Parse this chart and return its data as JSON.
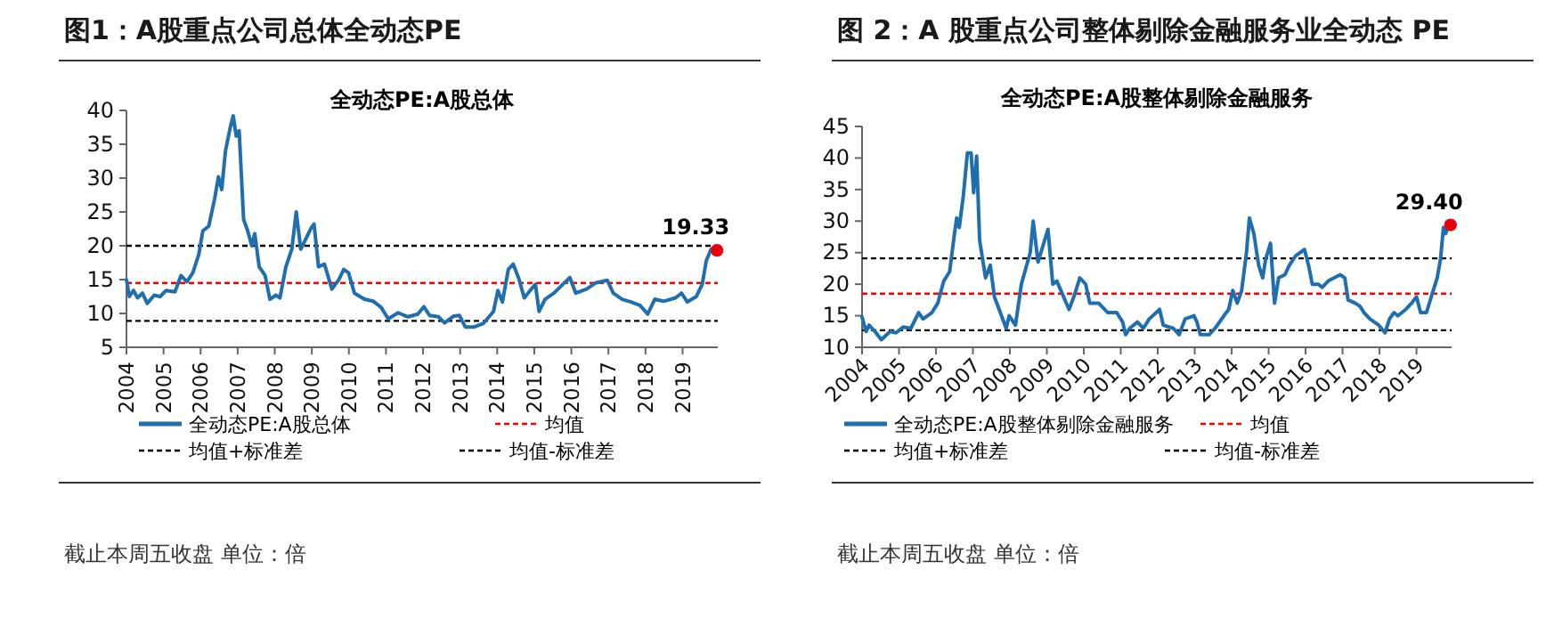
{
  "chart_data": [
    {
      "type": "line",
      "title": "图1：A股重点公司总体全动态PE",
      "subtitle": "全动态PE:A股总体",
      "xlim": [
        2004,
        2019.95
      ],
      "xticks": [
        2004,
        2005,
        2006,
        2007,
        2008,
        2009,
        2010,
        2011,
        2012,
        2013,
        2014,
        2015,
        2016,
        2017,
        2018,
        2019
      ],
      "ylim": [
        5,
        40
      ],
      "yticks": [
        5,
        10,
        15,
        20,
        25,
        30,
        35,
        40
      ],
      "grid": false,
      "legend": "bottom",
      "line_style": "solid",
      "series": [
        {
          "name": "全动态PE:A股总体",
          "color": "#1f6fb0",
          "x": [
            2004.0,
            2004.08,
            2004.19,
            2004.3,
            2004.43,
            2004.56,
            2004.75,
            2004.91,
            2005.07,
            2005.31,
            2005.47,
            2005.63,
            2005.79,
            2005.95,
            2006.06,
            2006.22,
            2006.38,
            2006.48,
            2006.57,
            2006.67,
            2006.8,
            2006.88,
            2006.96,
            2007.04,
            2007.16,
            2007.27,
            2007.38,
            2007.46,
            2007.58,
            2007.74,
            2007.87,
            2008.03,
            2008.14,
            2008.3,
            2008.46,
            2008.58,
            2008.7,
            2008.82,
            2008.98,
            2009.06,
            2009.18,
            2009.34,
            2009.54,
            2009.73,
            2009.86,
            2009.99,
            2010.15,
            2010.42,
            2010.66,
            2010.87,
            2011.06,
            2011.33,
            2011.59,
            2011.86,
            2012.02,
            2012.18,
            2012.42,
            2012.58,
            2012.82,
            2012.98,
            2013.14,
            2013.38,
            2013.62,
            2013.78,
            2013.9,
            2014.02,
            2014.14,
            2014.3,
            2014.43,
            2014.58,
            2014.73,
            2014.89,
            2015.03,
            2015.13,
            2015.29,
            2015.53,
            2015.77,
            2015.96,
            2016.12,
            2016.41,
            2016.65,
            2016.97,
            2017.13,
            2017.37,
            2017.61,
            2017.85,
            2018.06,
            2018.25,
            2018.49,
            2018.81,
            2018.97,
            2019.13,
            2019.37,
            2019.53,
            2019.64,
            2019.77,
            2019.88,
            2019.93
          ],
          "values": [
            15.0,
            12.5,
            13.4,
            12.3,
            13.0,
            11.5,
            12.7,
            12.5,
            13.4,
            13.2,
            15.6,
            14.7,
            16.0,
            18.7,
            22.2,
            22.9,
            27.0,
            30.2,
            28.3,
            34.0,
            37.5,
            39.2,
            36.2,
            37.0,
            23.9,
            22.2,
            20.0,
            21.8,
            16.9,
            15.6,
            12.1,
            12.7,
            12.3,
            16.9,
            19.5,
            25.0,
            19.5,
            20.8,
            22.6,
            23.2,
            16.9,
            17.3,
            13.6,
            15.0,
            16.5,
            16.0,
            13.0,
            12.1,
            11.8,
            10.9,
            9.2,
            10.1,
            9.5,
            9.9,
            11.0,
            9.7,
            9.5,
            8.6,
            9.6,
            9.7,
            8.0,
            8.0,
            8.5,
            9.5,
            10.3,
            13.4,
            11.7,
            16.5,
            17.3,
            15.2,
            12.3,
            13.4,
            14.3,
            10.3,
            12.1,
            13.0,
            14.3,
            15.3,
            13.0,
            13.6,
            14.5,
            14.9,
            13.0,
            12.1,
            11.7,
            11.2,
            9.9,
            12.1,
            11.8,
            12.3,
            13.0,
            11.7,
            12.5,
            14.3,
            17.8,
            19.5,
            19.9,
            19.33
          ]
        },
        {
          "type": "scatter",
          "color": "#e8000b",
          "marker": "circle",
          "x": [
            2019.93
          ],
          "values": [
            19.33
          ]
        }
      ],
      "ref_lines": [
        {
          "axis": "y",
          "value": 14.5,
          "label": "均值",
          "color": "#ff0000",
          "line_style": "dashed"
        },
        {
          "axis": "y",
          "value": 20,
          "label": "均值+标准差",
          "color": "#000000",
          "line_style": "dashed"
        },
        {
          "axis": "y",
          "value": 8.9,
          "label": "均值-标准差",
          "color": "#000000",
          "line_style": "dashed"
        }
      ],
      "annotations": [
        {
          "text": "19.33",
          "x": 2019.93,
          "y": 19.33
        },
        "截止本周五收盘 单位：倍"
      ]
    },
    {
      "type": "line",
      "title": "图 2：A 股重点公司整体剔除金融服务业全动态 PE",
      "subtitle": "全动态PE:A股整体剔除金融服务",
      "xlim": [
        2004,
        2019.95
      ],
      "xticks": [
        2004,
        2005,
        2006,
        2007,
        2008,
        2009,
        2010,
        2011,
        2012,
        2013,
        2014,
        2015,
        2016,
        2017,
        2018,
        2019
      ],
      "ylim": [
        10,
        45
      ],
      "yticks": [
        10,
        15,
        20,
        25,
        30,
        35,
        40,
        45
      ],
      "grid": false,
      "legend": "bottom",
      "line_style": "solid",
      "series": [
        {
          "name": "全动态PE:A股整体剔除金融服务",
          "color": "#1f6fb0",
          "x": [
            2004.0,
            2004.11,
            2004.19,
            2004.35,
            2004.52,
            2004.76,
            2004.92,
            2005.11,
            2005.32,
            2005.53,
            2005.65,
            2005.89,
            2006.05,
            2006.21,
            2006.37,
            2006.5,
            2006.56,
            2006.63,
            2006.74,
            2006.85,
            2006.95,
            2007.02,
            2007.1,
            2007.18,
            2007.34,
            2007.47,
            2007.58,
            2007.9,
            2007.98,
            2008.15,
            2008.31,
            2008.55,
            2008.63,
            2008.76,
            2009.03,
            2009.16,
            2009.27,
            2009.6,
            2009.76,
            2009.89,
            2010.05,
            2010.16,
            2010.4,
            2010.65,
            2010.89,
            2011.05,
            2011.13,
            2011.24,
            2011.45,
            2011.61,
            2011.77,
            2012.05,
            2012.15,
            2012.42,
            2012.58,
            2012.74,
            2012.98,
            2013.06,
            2013.15,
            2013.39,
            2013.55,
            2013.79,
            2013.92,
            2014.03,
            2014.15,
            2014.27,
            2014.4,
            2014.48,
            2014.6,
            2014.73,
            2014.84,
            2014.92,
            2015.05,
            2015.16,
            2015.27,
            2015.44,
            2015.56,
            2015.73,
            2015.97,
            2016.08,
            2016.18,
            2016.34,
            2016.45,
            2016.61,
            2016.77,
            2016.94,
            2017.06,
            2017.15,
            2017.34,
            2017.47,
            2017.58,
            2017.74,
            2017.98,
            2018.15,
            2018.27,
            2018.39,
            2018.5,
            2018.71,
            2018.87,
            2019.0,
            2019.11,
            2019.27,
            2019.4,
            2019.56,
            2019.65,
            2019.73,
            2019.79,
            2019.87,
            2019.92
          ],
          "values": [
            14.8,
            12.5,
            13.5,
            12.5,
            11.2,
            12.5,
            12.3,
            13.2,
            13.0,
            15.5,
            14.5,
            15.5,
            17.0,
            20.5,
            22.0,
            28.0,
            30.5,
            29.0,
            34.0,
            40.8,
            40.8,
            34.5,
            40.3,
            27.0,
            21.0,
            23.0,
            18.0,
            13.0,
            15.0,
            13.5,
            20.0,
            25.0,
            30.0,
            23.5,
            28.7,
            20.0,
            20.5,
            16.0,
            18.5,
            21.0,
            20.0,
            17.0,
            17.0,
            15.5,
            15.5,
            14.0,
            12.0,
            13.0,
            14.0,
            13.0,
            14.5,
            16.0,
            13.5,
            13.0,
            12.0,
            14.5,
            15.0,
            14.0,
            12.0,
            12.0,
            13.0,
            15.0,
            16.0,
            19.0,
            17.0,
            19.0,
            25.0,
            30.5,
            28.0,
            23.0,
            21.0,
            24.0,
            26.5,
            17.0,
            21.0,
            21.5,
            23.0,
            24.5,
            25.5,
            23.0,
            20.0,
            20.0,
            19.5,
            20.5,
            21.0,
            21.5,
            21.0,
            17.5,
            17.0,
            16.5,
            15.5,
            14.5,
            13.5,
            12.3,
            14.5,
            15.5,
            15.0,
            16.0,
            17.0,
            18.0,
            15.5,
            15.5,
            18.0,
            21.0,
            24.0,
            29.0,
            28.0,
            29.5,
            29.4
          ]
        },
        {
          "type": "scatter",
          "color": "#e8000b",
          "marker": "circle",
          "x": [
            2019.92
          ],
          "values": [
            29.4
          ]
        }
      ],
      "ref_lines": [
        {
          "axis": "y",
          "value": 18.5,
          "label": "均值",
          "color": "#ff0000",
          "line_style": "dashed"
        },
        {
          "axis": "y",
          "value": 24.1,
          "label": "均值+标准差",
          "color": "#000000",
          "line_style": "dashed"
        },
        {
          "axis": "y",
          "value": 12.7,
          "label": "均值-标准差",
          "color": "#000000",
          "line_style": "dashed"
        }
      ],
      "annotations": [
        {
          "text": "29.40",
          "x": 2019.92,
          "y": 29.4
        },
        "截止本周五收盘 单位：倍"
      ]
    }
  ]
}
